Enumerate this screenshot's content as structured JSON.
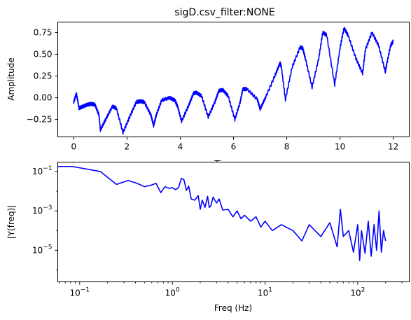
{
  "chart_data": [
    {
      "type": "line",
      "title": "sigD.csv_filter:NONE",
      "xlabel": "Time",
      "ylabel": "Amplitude",
      "xlim": [
        -0.6,
        12.6
      ],
      "ylim": [
        -0.45,
        0.87
      ],
      "xticks": [
        0,
        2,
        4,
        6,
        8,
        10,
        12
      ],
      "yticks": [
        -0.25,
        0.0,
        0.25,
        0.5,
        0.75
      ],
      "xtick_labels": [
        "0",
        "2",
        "4",
        "6",
        "8",
        "10",
        "12"
      ],
      "ytick_labels": [
        "−0.25",
        "0.00",
        "0.25",
        "0.50",
        "0.75"
      ],
      "grid": false,
      "color": "#0000ff",
      "series": [
        {
          "x": [
            0.0,
            0.1,
            0.2,
            0.35,
            0.5,
            0.65,
            0.8,
            0.95,
            1.0,
            1.2,
            1.45,
            1.6,
            1.85,
            2.1,
            2.35,
            2.5,
            2.65,
            2.9,
            3.0,
            3.1,
            3.3,
            3.6,
            3.8,
            3.9,
            4.05,
            4.3,
            4.5,
            4.6,
            4.8,
            5.05,
            5.3,
            5.45,
            5.6,
            5.8,
            6.05,
            6.25,
            6.35,
            6.5,
            6.9,
            7.0,
            7.2,
            7.55,
            7.75,
            7.8,
            7.95,
            8.2,
            8.5,
            8.6,
            8.7,
            8.95,
            9.2,
            9.35,
            9.5,
            9.8,
            10.0,
            10.15,
            10.3,
            10.6,
            10.85,
            10.95,
            11.2,
            11.45,
            11.7,
            11.75,
            11.9,
            12.0
          ],
          "values": [
            -0.05,
            0.05,
            -0.12,
            -0.1,
            -0.08,
            -0.07,
            -0.08,
            -0.2,
            -0.37,
            -0.25,
            -0.1,
            -0.12,
            -0.4,
            -0.22,
            -0.05,
            -0.04,
            -0.05,
            -0.2,
            -0.32,
            -0.2,
            -0.03,
            0.0,
            -0.03,
            -0.1,
            -0.27,
            -0.1,
            0.05,
            0.06,
            0.02,
            -0.22,
            -0.05,
            0.08,
            0.09,
            0.02,
            -0.25,
            -0.05,
            0.1,
            0.1,
            -0.02,
            -0.13,
            0.0,
            0.25,
            0.4,
            0.35,
            -0.02,
            0.35,
            0.58,
            0.57,
            0.45,
            0.12,
            0.45,
            0.75,
            0.72,
            0.15,
            0.57,
            0.8,
            0.72,
            0.45,
            0.28,
            0.55,
            0.75,
            0.6,
            0.3,
            0.38,
            0.6,
            0.65
          ]
        }
      ]
    },
    {
      "type": "line",
      "title": "",
      "xlabel": "Freq (Hz)",
      "ylabel": "|Y(freq)|",
      "xscale": "log",
      "yscale": "log",
      "xlim": [
        0.058,
        360
      ],
      "ylim": [
        2.5e-07,
        0.3
      ],
      "xtick_major": [
        0.1,
        1,
        10,
        100
      ],
      "ytick_major": [
        1e-05,
        0.001,
        0.1
      ],
      "xtick_labels": [
        {
          "base": "10",
          "exp": "−1"
        },
        {
          "base": "10",
          "exp": "0"
        },
        {
          "base": "10",
          "exp": "1"
        },
        {
          "base": "10",
          "exp": "2"
        }
      ],
      "ytick_labels": [
        {
          "base": "10",
          "exp": "−5"
        },
        {
          "base": "10",
          "exp": "−3"
        },
        {
          "base": "10",
          "exp": "−1"
        }
      ],
      "grid": false,
      "color": "#0000ff",
      "series": [
        {
          "x": [
            0.04,
            0.083,
            0.167,
            0.25,
            0.333,
            0.417,
            0.5,
            0.583,
            0.667,
            0.75,
            0.833,
            0.917,
            1.0,
            1.083,
            1.167,
            1.25,
            1.333,
            1.417,
            1.5,
            1.6,
            1.75,
            1.9,
            2.0,
            2.1,
            2.25,
            2.4,
            2.5,
            2.6,
            2.75,
            3.0,
            3.2,
            3.5,
            4.0,
            4.5,
            5.0,
            5.5,
            6.0,
            7.0,
            8.0,
            9.0,
            10.0,
            12.0,
            15.0,
            20.0,
            25.0,
            30.0,
            40.0,
            50.0,
            60.0,
            65.0,
            70.0,
            80.0,
            90.0,
            100.0,
            105.0,
            110.0,
            120.0,
            130.0,
            140.0,
            150.0,
            160.0,
            170.0,
            180.0,
            190.0,
            200.0
          ],
          "values": [
            0.18,
            0.18,
            0.1,
            0.022,
            0.035,
            0.025,
            0.017,
            0.02,
            0.025,
            0.0085,
            0.017,
            0.014,
            0.015,
            0.012,
            0.015,
            0.045,
            0.038,
            0.011,
            0.018,
            0.004,
            0.0035,
            0.006,
            0.0012,
            0.0035,
            0.0015,
            0.0055,
            0.0015,
            0.0018,
            0.005,
            0.0025,
            0.004,
            0.0011,
            0.0012,
            0.0005,
            0.001,
            0.0004,
            0.0006,
            0.0003,
            0.0005,
            0.00015,
            0.0003,
            0.0001,
            0.0002,
            0.0001,
            3e-05,
            0.0002,
            5e-05,
            0.00025,
            1.5e-05,
            0.0012,
            5e-05,
            0.0001,
            8e-06,
            0.0002,
            3e-06,
            0.0001,
            7e-06,
            0.0003,
            5e-06,
            0.0002,
            1e-05,
            0.001,
            8e-06,
            0.0001,
            3e-05
          ]
        }
      ]
    }
  ]
}
